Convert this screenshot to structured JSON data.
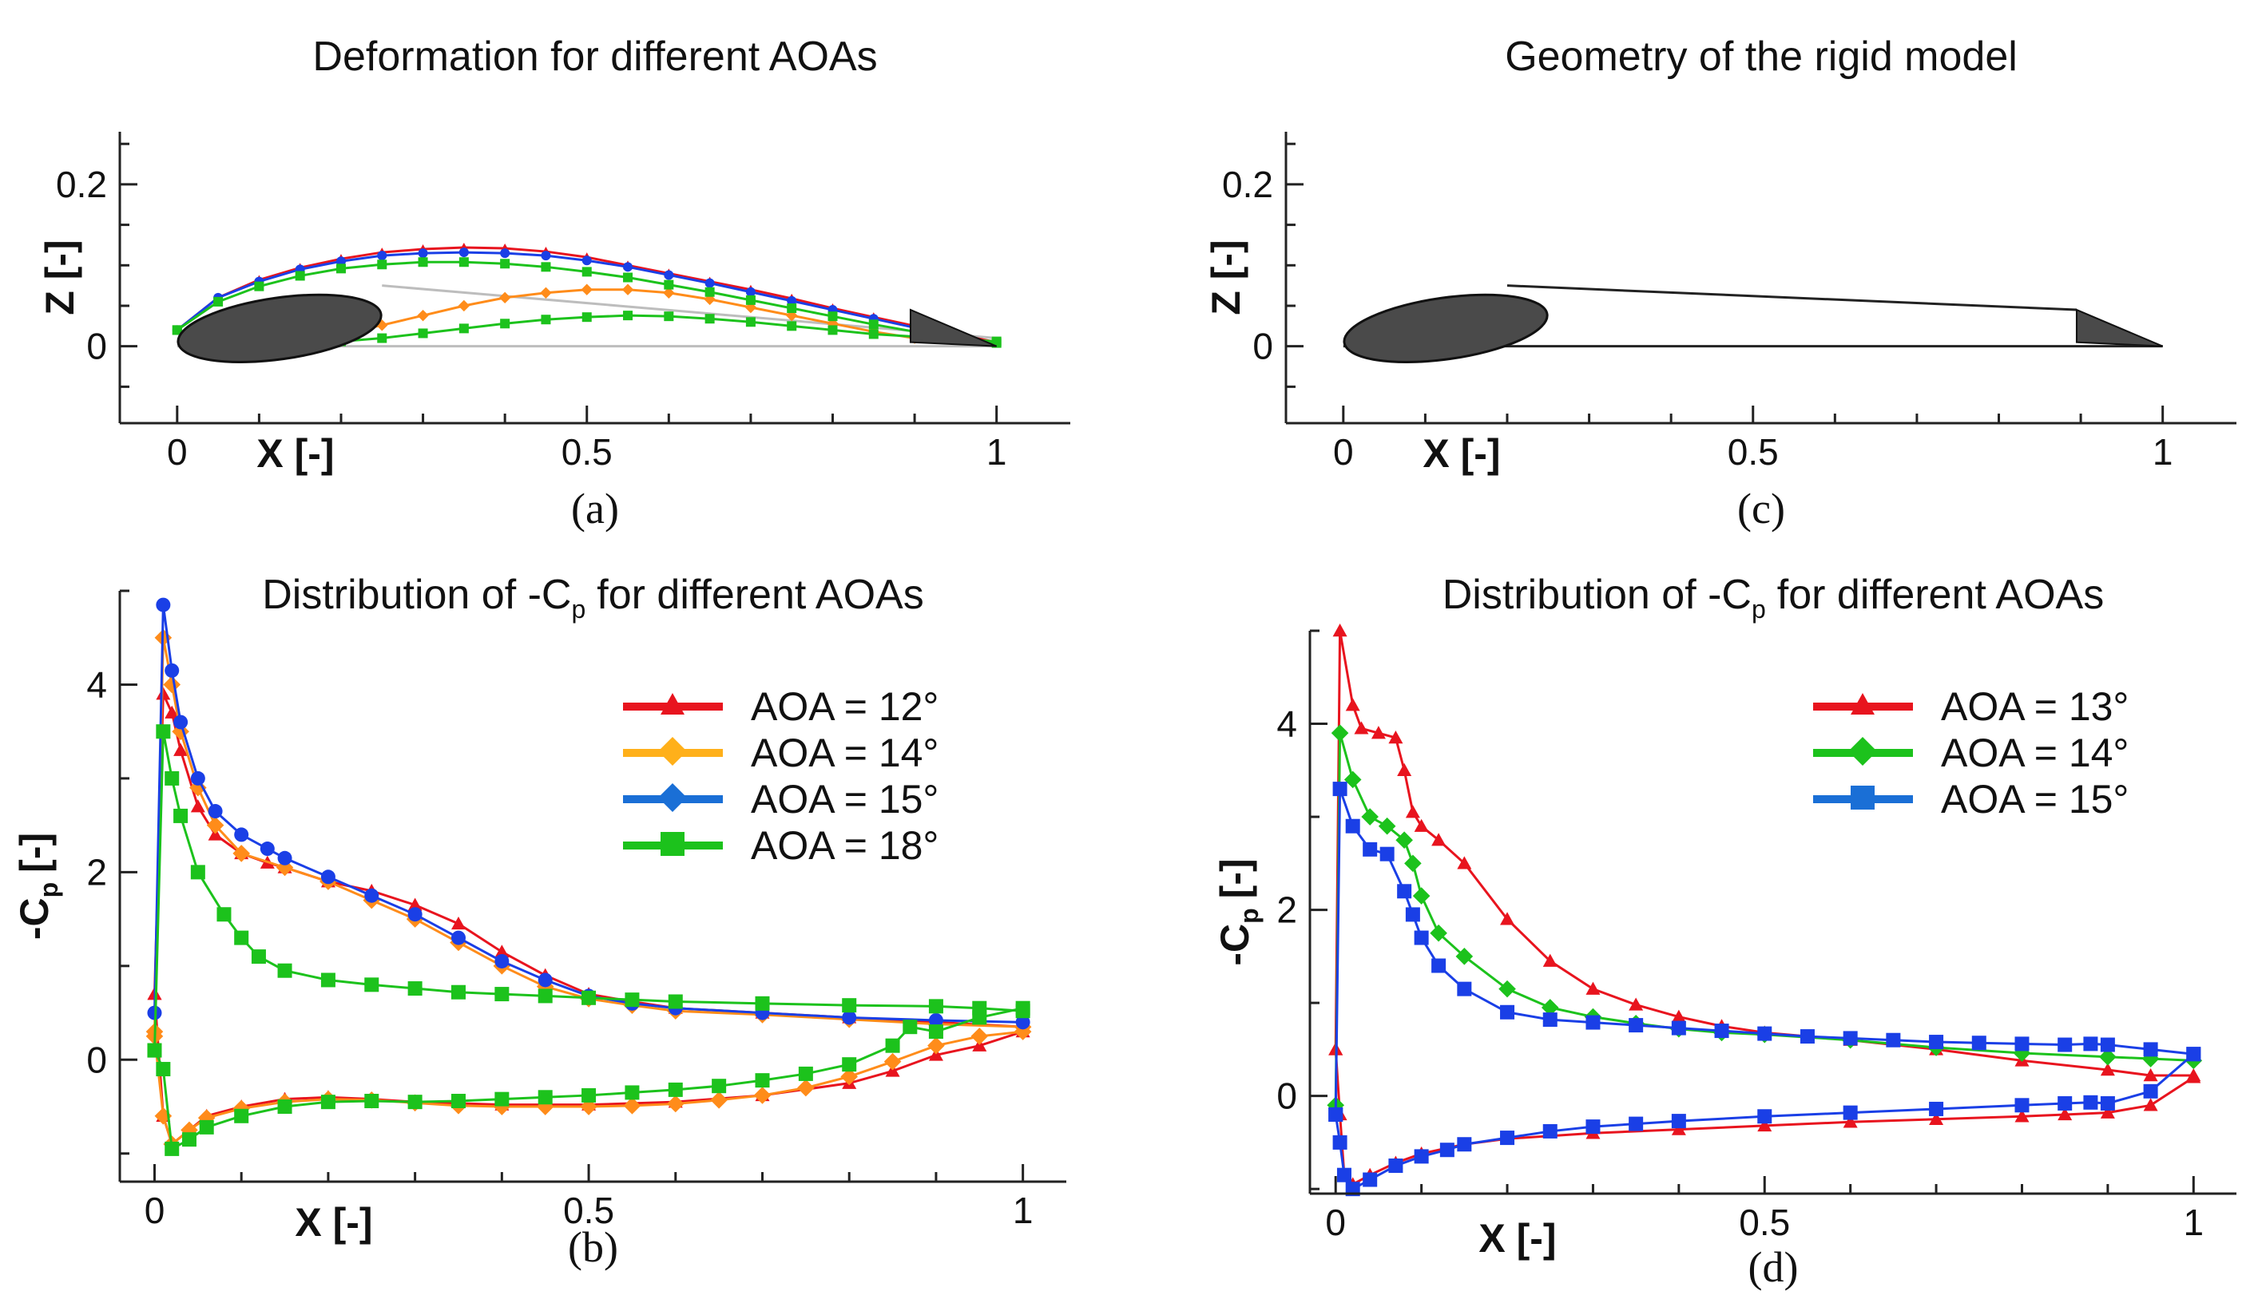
{
  "chart_data": [
    {
      "id": "a",
      "type": "line",
      "title": "Deformation for different AOAs",
      "xlabel": "X [-]",
      "ylabel": "Z [-]",
      "caption": "(a)",
      "xlim": [
        -0.07,
        1.09
      ],
      "ylim": [
        -0.095,
        0.265
      ],
      "xticks": [
        "0",
        "0.5",
        "1"
      ],
      "yticks": [
        "0",
        "0.2"
      ],
      "colors": {
        "red": "#e8141e",
        "orange": "#ff8c1a",
        "blue": "#1a3fe6",
        "green": "#1cc21c",
        "gray": "#bdbdbd",
        "body": "#4a4a4a"
      },
      "series": [
        {
          "name": "red-upper",
          "color": "#e8141e",
          "marker": "triangle",
          "x": [
            0.0,
            0.05,
            0.1,
            0.15,
            0.2,
            0.25,
            0.3,
            0.35,
            0.4,
            0.45,
            0.5,
            0.55,
            0.6,
            0.65,
            0.7,
            0.75,
            0.8,
            0.85,
            0.9,
            0.95,
            1.0
          ],
          "y": [
            0.02,
            0.06,
            0.082,
            0.097,
            0.108,
            0.116,
            0.12,
            0.122,
            0.121,
            0.117,
            0.11,
            0.1,
            0.09,
            0.08,
            0.07,
            0.059,
            0.047,
            0.036,
            0.025,
            0.015,
            0.005
          ]
        },
        {
          "name": "blue-upper",
          "color": "#1a3fe6",
          "marker": "circle",
          "x": [
            0.0,
            0.05,
            0.1,
            0.15,
            0.2,
            0.25,
            0.3,
            0.35,
            0.4,
            0.45,
            0.5,
            0.55,
            0.6,
            0.65,
            0.7,
            0.75,
            0.8,
            0.85,
            0.9
          ],
          "y": [
            0.02,
            0.06,
            0.08,
            0.095,
            0.105,
            0.112,
            0.115,
            0.116,
            0.115,
            0.112,
            0.106,
            0.098,
            0.088,
            0.078,
            0.067,
            0.056,
            0.045,
            0.034,
            0.023
          ]
        },
        {
          "name": "orange-lower",
          "color": "#ff8c1a",
          "marker": "diamond",
          "x": [
            0.2,
            0.25,
            0.3,
            0.35,
            0.4,
            0.45,
            0.5,
            0.55,
            0.6,
            0.65,
            0.7,
            0.75,
            0.8,
            0.85,
            0.9
          ],
          "y": [
            0.015,
            0.026,
            0.038,
            0.05,
            0.06,
            0.066,
            0.07,
            0.07,
            0.066,
            0.058,
            0.048,
            0.038,
            0.028,
            0.018,
            0.01
          ]
        },
        {
          "name": "green-upper",
          "color": "#1cc21c",
          "marker": "square",
          "x": [
            0.0,
            0.05,
            0.1,
            0.15,
            0.2,
            0.25,
            0.3,
            0.35,
            0.4,
            0.45,
            0.5,
            0.55,
            0.6,
            0.65,
            0.7,
            0.75,
            0.8,
            0.85,
            0.9,
            0.95,
            1.0
          ],
          "y": [
            0.02,
            0.055,
            0.074,
            0.087,
            0.096,
            0.101,
            0.104,
            0.104,
            0.102,
            0.098,
            0.092,
            0.085,
            0.076,
            0.067,
            0.057,
            0.047,
            0.037,
            0.027,
            0.018,
            0.01,
            0.004
          ]
        },
        {
          "name": "green-lower",
          "color": "#1cc21c",
          "marker": "square",
          "x": [
            0.0,
            0.05,
            0.1,
            0.15,
            0.2,
            0.25,
            0.3,
            0.35,
            0.4,
            0.45,
            0.5,
            0.55,
            0.6,
            0.65,
            0.7,
            0.75,
            0.8,
            0.85,
            0.9,
            0.95,
            1.0
          ],
          "y": [
            0.02,
            0.008,
            0.004,
            0.004,
            0.006,
            0.01,
            0.016,
            0.022,
            0.028,
            0.033,
            0.036,
            0.038,
            0.037,
            0.034,
            0.03,
            0.025,
            0.02,
            0.015,
            0.012,
            0.009,
            0.006
          ]
        }
      ]
    },
    {
      "id": "c",
      "type": "line",
      "title": "Geometry of the rigid model",
      "xlabel": "X [-]",
      "ylabel": "Z [-]",
      "caption": "(c)",
      "xlim": [
        -0.07,
        1.09
      ],
      "ylim": [
        -0.095,
        0.265
      ],
      "xticks": [
        "0",
        "0.5",
        "1"
      ],
      "yticks": [
        "0",
        "0.2"
      ],
      "colors": {
        "body": "#4a4a4a",
        "outline": "#222222"
      }
    },
    {
      "id": "b",
      "type": "line",
      "title": "Distribution of -C",
      "title_sub": "p",
      "title_suffix": "for different AOAs",
      "xlabel": "X [-]",
      "ylabel": "-C",
      "ylabel_sub": "p",
      "ylabel_suffix": "[-]",
      "caption": "(b)",
      "xlim": [
        -0.04,
        1.05
      ],
      "ylim": [
        -1.3,
        5.0
      ],
      "xticks": [
        "0",
        "0.5",
        "1"
      ],
      "yticks": [
        "0",
        "2",
        "4"
      ],
      "legend": [
        {
          "label": "AOA = 12°",
          "color": "#e8141e",
          "marker": "triangle"
        },
        {
          "label": "AOA = 14°",
          "color": "#ffb01a",
          "marker": "diamond"
        },
        {
          "label": "AOA = 15°",
          "color": "#1a6fd6",
          "marker": "diamond"
        },
        {
          "label": "AOA = 18°",
          "color": "#1cc21c",
          "marker": "square"
        }
      ],
      "series": [
        {
          "name": "AOA = 12° upper",
          "color": "#e8141e",
          "marker": "triangle",
          "x": [
            0.0,
            0.01,
            0.02,
            0.03,
            0.05,
            0.07,
            0.1,
            0.13,
            0.15,
            0.2,
            0.25,
            0.3,
            0.35,
            0.4,
            0.45,
            0.5,
            0.55,
            0.6,
            0.7,
            0.8,
            0.9,
            1.0
          ],
          "y": [
            0.7,
            3.9,
            3.7,
            3.3,
            2.7,
            2.4,
            2.2,
            2.1,
            2.05,
            1.9,
            1.8,
            1.65,
            1.45,
            1.15,
            0.9,
            0.7,
            0.62,
            0.55,
            0.5,
            0.45,
            0.4,
            0.35
          ]
        },
        {
          "name": "AOA = 12° lower",
          "color": "#e8141e",
          "marker": "triangle",
          "x": [
            0.0,
            0.01,
            0.02,
            0.04,
            0.06,
            0.1,
            0.15,
            0.2,
            0.25,
            0.3,
            0.4,
            0.5,
            0.6,
            0.7,
            0.8,
            0.85,
            0.9,
            0.95,
            1.0
          ],
          "y": [
            0.7,
            -0.6,
            -0.9,
            -0.75,
            -0.6,
            -0.5,
            -0.42,
            -0.4,
            -0.42,
            -0.45,
            -0.48,
            -0.48,
            -0.45,
            -0.38,
            -0.25,
            -0.12,
            0.05,
            0.15,
            0.3
          ]
        },
        {
          "name": "AOA = 14° upper",
          "color": "#ff8c1a",
          "marker": "diamond",
          "x": [
            0.0,
            0.01,
            0.02,
            0.03,
            0.05,
            0.07,
            0.1,
            0.15,
            0.2,
            0.25,
            0.3,
            0.35,
            0.4,
            0.45,
            0.5,
            0.55,
            0.6,
            0.7,
            0.8,
            0.9,
            1.0
          ],
          "y": [
            0.3,
            4.5,
            4.0,
            3.5,
            2.9,
            2.5,
            2.2,
            2.05,
            1.9,
            1.7,
            1.5,
            1.25,
            1.0,
            0.78,
            0.65,
            0.58,
            0.52,
            0.48,
            0.43,
            0.38,
            0.35
          ]
        },
        {
          "name": "AOA = 14° lower",
          "color": "#ff8c1a",
          "marker": "diamond",
          "x": [
            0.0,
            0.01,
            0.02,
            0.04,
            0.06,
            0.1,
            0.15,
            0.2,
            0.25,
            0.3,
            0.35,
            0.4,
            0.45,
            0.5,
            0.55,
            0.6,
            0.65,
            0.7,
            0.75,
            0.8,
            0.85,
            0.9,
            0.95,
            1.0
          ],
          "y": [
            0.25,
            -0.6,
            -0.9,
            -0.75,
            -0.62,
            -0.52,
            -0.45,
            -0.42,
            -0.43,
            -0.46,
            -0.49,
            -0.5,
            -0.5,
            -0.5,
            -0.49,
            -0.47,
            -0.43,
            -0.38,
            -0.3,
            -0.18,
            -0.02,
            0.15,
            0.25,
            0.3
          ]
        },
        {
          "name": "AOA = 15° upper",
          "color": "#1a3fe6",
          "marker": "circle",
          "x": [
            0.0,
            0.01,
            0.02,
            0.03,
            0.05,
            0.07,
            0.1,
            0.13,
            0.15,
            0.2,
            0.25,
            0.3,
            0.35,
            0.4,
            0.45,
            0.5,
            0.55,
            0.6,
            0.7,
            0.8,
            0.9,
            1.0
          ],
          "y": [
            0.5,
            4.85,
            4.15,
            3.6,
            3.0,
            2.65,
            2.4,
            2.25,
            2.15,
            1.95,
            1.75,
            1.55,
            1.3,
            1.05,
            0.85,
            0.68,
            0.6,
            0.55,
            0.5,
            0.45,
            0.42,
            0.4
          ]
        },
        {
          "name": "AOA = 18° upper",
          "color": "#1cc21c",
          "marker": "square",
          "x": [
            0.0,
            0.01,
            0.02,
            0.03,
            0.05,
            0.08,
            0.1,
            0.12,
            0.15,
            0.2,
            0.25,
            0.3,
            0.35,
            0.4,
            0.45,
            0.5,
            0.55,
            0.6,
            0.7,
            0.8,
            0.9,
            0.95,
            1.0
          ],
          "y": [
            0.1,
            3.5,
            3.0,
            2.6,
            2.0,
            1.55,
            1.3,
            1.1,
            0.95,
            0.85,
            0.8,
            0.76,
            0.72,
            0.7,
            0.68,
            0.66,
            0.64,
            0.62,
            0.6,
            0.58,
            0.57,
            0.55,
            0.52
          ]
        },
        {
          "name": "AOA = 18° lower",
          "color": "#1cc21c",
          "marker": "square",
          "x": [
            0.0,
            0.01,
            0.02,
            0.04,
            0.06,
            0.1,
            0.15,
            0.2,
            0.25,
            0.3,
            0.35,
            0.4,
            0.45,
            0.5,
            0.55,
            0.6,
            0.65,
            0.7,
            0.75,
            0.8,
            0.85,
            0.87,
            0.9,
            0.95,
            1.0
          ],
          "y": [
            0.1,
            -0.1,
            -0.95,
            -0.85,
            -0.72,
            -0.6,
            -0.5,
            -0.45,
            -0.44,
            -0.45,
            -0.44,
            -0.42,
            -0.4,
            -0.38,
            -0.35,
            -0.32,
            -0.28,
            -0.22,
            -0.15,
            -0.05,
            0.15,
            0.35,
            0.3,
            0.45,
            0.55
          ]
        }
      ]
    },
    {
      "id": "d",
      "type": "line",
      "title": "Distribution of -C",
      "title_sub": "p",
      "title_suffix": "for different AOAs",
      "xlabel": "X [-]",
      "ylabel": "-C",
      "ylabel_sub": "p",
      "ylabel_suffix": "[-]",
      "caption": "(d)",
      "xlim": [
        -0.03,
        1.05
      ],
      "ylim": [
        -1.05,
        5.0
      ],
      "xticks": [
        "0",
        "0.5",
        "1"
      ],
      "yticks": [
        "0",
        "2",
        "4"
      ],
      "legend": [
        {
          "label": "AOA = 13°",
          "color": "#e8141e",
          "marker": "triangle"
        },
        {
          "label": "AOA = 14°",
          "color": "#1cc21c",
          "marker": "diamond"
        },
        {
          "label": "AOA = 15°",
          "color": "#1a6fd6",
          "marker": "square"
        }
      ],
      "series": [
        {
          "name": "AOA = 13° upper",
          "color": "#e8141e",
          "marker": "triangle",
          "x": [
            0.0,
            0.005,
            0.02,
            0.03,
            0.05,
            0.07,
            0.08,
            0.09,
            0.1,
            0.12,
            0.15,
            0.2,
            0.25,
            0.3,
            0.35,
            0.4,
            0.45,
            0.5,
            0.6,
            0.7,
            0.8,
            0.9,
            0.95,
            1.0
          ],
          "y": [
            0.5,
            5.0,
            4.2,
            3.95,
            3.9,
            3.85,
            3.5,
            3.05,
            2.9,
            2.75,
            2.5,
            1.9,
            1.45,
            1.15,
            0.98,
            0.85,
            0.75,
            0.68,
            0.6,
            0.5,
            0.38,
            0.28,
            0.22,
            0.22
          ]
        },
        {
          "name": "AOA = 13° lower",
          "color": "#e8141e",
          "marker": "triangle",
          "x": [
            0.0,
            0.005,
            0.01,
            0.02,
            0.04,
            0.07,
            0.1,
            0.15,
            0.2,
            0.3,
            0.4,
            0.5,
            0.6,
            0.7,
            0.8,
            0.85,
            0.9,
            0.95,
            1.0
          ],
          "y": [
            0.5,
            -0.2,
            -0.85,
            -0.95,
            -0.85,
            -0.72,
            -0.62,
            -0.52,
            -0.46,
            -0.4,
            -0.36,
            -0.32,
            -0.28,
            -0.25,
            -0.22,
            -0.2,
            -0.18,
            -0.1,
            0.2
          ]
        },
        {
          "name": "AOA = 14° upper",
          "color": "#1cc21c",
          "marker": "diamond",
          "x": [
            0.0,
            0.005,
            0.02,
            0.04,
            0.06,
            0.08,
            0.09,
            0.1,
            0.12,
            0.15,
            0.2,
            0.25,
            0.3,
            0.35,
            0.4,
            0.45,
            0.5,
            0.6,
            0.7,
            0.8,
            0.9,
            0.95,
            1.0
          ],
          "y": [
            -0.1,
            3.9,
            3.4,
            3.0,
            2.9,
            2.75,
            2.5,
            2.15,
            1.75,
            1.5,
            1.15,
            0.95,
            0.85,
            0.78,
            0.72,
            0.68,
            0.66,
            0.6,
            0.52,
            0.46,
            0.42,
            0.4,
            0.38
          ]
        },
        {
          "name": "AOA = 15° upper",
          "color": "#1a3fe6",
          "marker": "square",
          "x": [
            0.0,
            0.005,
            0.02,
            0.04,
            0.06,
            0.08,
            0.09,
            0.1,
            0.12,
            0.15,
            0.2,
            0.25,
            0.3,
            0.35,
            0.4,
            0.45,
            0.5,
            0.55,
            0.6,
            0.65,
            0.7,
            0.75,
            0.8,
            0.85,
            0.88,
            0.9,
            0.95,
            1.0
          ],
          "y": [
            -0.2,
            3.3,
            2.9,
            2.65,
            2.6,
            2.2,
            1.95,
            1.7,
            1.4,
            1.15,
            0.9,
            0.82,
            0.79,
            0.76,
            0.73,
            0.7,
            0.67,
            0.64,
            0.62,
            0.6,
            0.58,
            0.57,
            0.56,
            0.55,
            0.56,
            0.55,
            0.5,
            0.45
          ]
        },
        {
          "name": "AOA = 15° lower",
          "color": "#1a3fe6",
          "marker": "square",
          "x": [
            0.0,
            0.005,
            0.01,
            0.02,
            0.04,
            0.07,
            0.1,
            0.13,
            0.15,
            0.2,
            0.25,
            0.3,
            0.35,
            0.4,
            0.5,
            0.6,
            0.7,
            0.8,
            0.85,
            0.88,
            0.9,
            0.95,
            1.0
          ],
          "y": [
            -0.2,
            -0.5,
            -0.85,
            -1.0,
            -0.9,
            -0.75,
            -0.65,
            -0.58,
            -0.52,
            -0.45,
            -0.38,
            -0.33,
            -0.3,
            -0.27,
            -0.22,
            -0.18,
            -0.14,
            -0.1,
            -0.08,
            -0.07,
            -0.08,
            0.05,
            0.45
          ]
        }
      ]
    }
  ]
}
